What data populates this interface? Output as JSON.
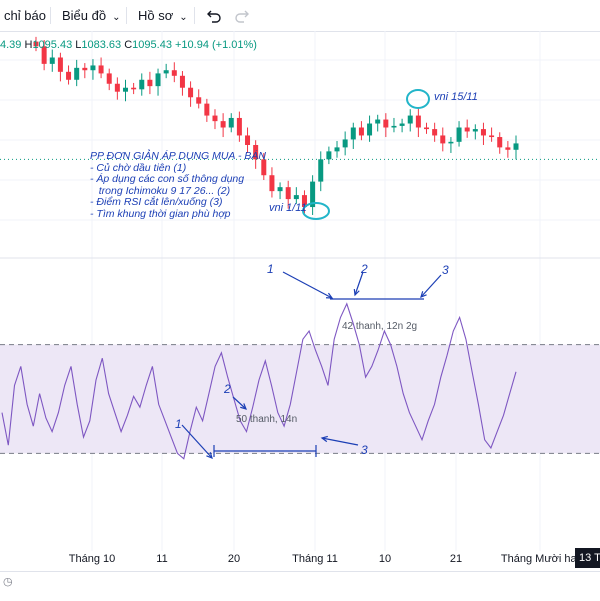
{
  "toolbar": {
    "indicators_label": "chỉ báo",
    "chart_type_label": "Biểu đồ",
    "profile_label": "Hồ sơ",
    "undo_icon": "undo-icon",
    "redo_icon": "redo-icon"
  },
  "ohlc": {
    "prefix": "4.39",
    "h_key": "H",
    "h_val": "1095.43",
    "l_key": "L",
    "l_val": "1083.63",
    "c_key": "C",
    "c_val": "1095.43",
    "change": "+10.94 (+1.01%)"
  },
  "annotation": {
    "title": "PP ĐƠN GIẢN ÁP DỤNG MUA - BÁN",
    "lines": [
      "- Củ chờ dầu tiên (1)",
      "- Áp dụng các con số thông dụng",
      "   trong Ichimoku 9 17 26... (2)",
      "- Điểm RSI cắt lên/xuống (3)",
      "- Tìm khung thời gian phù hợp"
    ],
    "label_left": "vni 1/11",
    "label_right": "vni 15/11",
    "markers": {
      "one": "1",
      "two": "2",
      "three": "3"
    },
    "box_left": "50 thanh, 14n",
    "box_right": "42 thanh, 12n 2g"
  },
  "x_axis": {
    "labels": [
      "Tháng 10",
      "11",
      "20",
      "Tháng 11",
      "10",
      "21",
      "Tháng Mười hai"
    ],
    "price_badge": "13 T"
  },
  "colors": {
    "up": "#089981",
    "down": "#f23645",
    "rsi_line": "#7e57c2",
    "rsi_band": "#ede7f6",
    "annotation": "#1c3fb5",
    "circle": "#22b5c9"
  },
  "chart_data": [
    {
      "type": "candlestick",
      "title": "",
      "approx_closes": [
        1262,
        1240,
        1248,
        1230,
        1220,
        1235,
        1232,
        1238,
        1228,
        1215,
        1205,
        1210,
        1208,
        1220,
        1212,
        1228,
        1232,
        1225,
        1210,
        1198,
        1190,
        1175,
        1168,
        1160,
        1172,
        1150,
        1138,
        1120,
        1100,
        1080,
        1085,
        1070,
        1075,
        1060,
        1092,
        1120,
        1130,
        1135,
        1145,
        1160,
        1150,
        1165,
        1170,
        1160,
        1162,
        1165,
        1175,
        1160,
        1158,
        1150,
        1140,
        1142,
        1160,
        1155,
        1158,
        1150,
        1148,
        1135,
        1132,
        1140
      ],
      "horizontal_level": 1120
    },
    {
      "type": "line",
      "title": "",
      "band": [
        30,
        70
      ],
      "values": [
        45,
        33,
        55,
        62,
        48,
        40,
        52,
        43,
        38,
        45,
        55,
        62,
        48,
        36,
        42,
        57,
        65,
        52,
        45,
        38,
        44,
        51,
        47,
        55,
        62,
        48,
        42,
        36,
        30,
        28,
        38,
        47,
        42,
        52,
        62,
        67,
        58,
        50,
        42,
        38,
        47,
        57,
        64,
        55,
        45,
        40,
        48,
        60,
        72,
        75,
        68,
        62,
        55,
        72,
        80,
        85,
        78,
        70,
        58,
        62,
        68,
        75,
        70,
        62,
        52,
        45,
        40,
        35,
        42,
        48,
        58,
        66,
        75,
        80,
        72,
        60,
        48,
        35,
        32,
        38,
        44,
        52,
        60
      ]
    }
  ]
}
